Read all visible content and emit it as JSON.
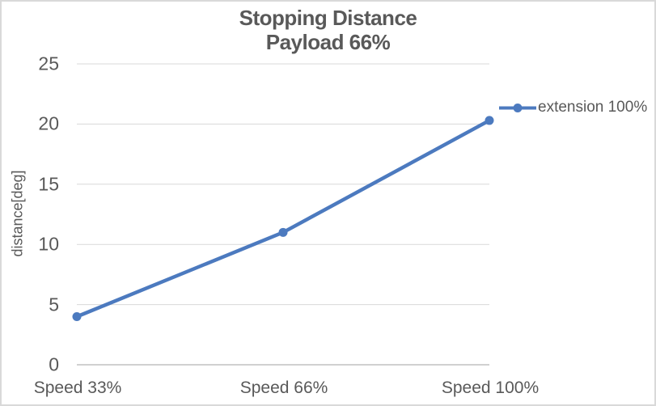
{
  "chart": {
    "title_line1": "Stopping Distance",
    "title_line2": "Payload 66%"
  },
  "chart_data": {
    "type": "line",
    "title": "Stopping Distance",
    "subtitle": "Payload 66%",
    "ylabel": "distance[deg]",
    "xlabel": "",
    "categories": [
      "Speed 33%",
      "Speed 66%",
      "Speed 100%"
    ],
    "series": [
      {
        "name": "extension 100%",
        "values": [
          4,
          11,
          20.3
        ]
      }
    ],
    "ylim": [
      0,
      25
    ],
    "yticks": [
      0,
      5,
      10,
      15,
      20,
      25
    ],
    "grid": true,
    "legend_position": "right",
    "line_color": "#4C7ABF",
    "marker": "circle",
    "text_color": "#595959",
    "grid_color": "#D9D9D9",
    "axis_color": "#C0C0C0",
    "border_color": "#D9D9D9"
  }
}
